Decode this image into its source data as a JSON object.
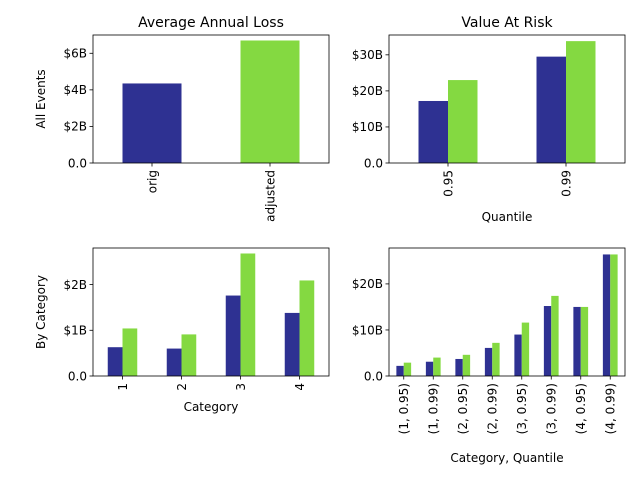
{
  "colors": {
    "orig": "#2e3192",
    "adjusted": "#84d941"
  },
  "chart_data": [
    {
      "type": "bar",
      "title": "Average Annual Loss",
      "ylabel": "All Events",
      "xlabel": "",
      "categories": [
        "orig",
        "adjusted"
      ],
      "values": [
        4.35,
        6.7
      ],
      "bar_colors": [
        "#2e3192",
        "#84d941"
      ],
      "ylim": [
        0,
        7.0
      ],
      "yticks": [
        0,
        2,
        4,
        6
      ],
      "ytick_labels": [
        "0.0",
        "$2B",
        "$4B",
        "$6B"
      ]
    },
    {
      "type": "bar",
      "title": "Value At Risk",
      "ylabel": "",
      "xlabel": "Quantile",
      "categories": [
        "0.95",
        "0.99"
      ],
      "series": [
        {
          "values": [
            17.2,
            29.5
          ],
          "color": "#2e3192"
        },
        {
          "values": [
            23.0,
            33.8
          ],
          "color": "#84d941"
        }
      ],
      "ylim": [
        0,
        35.5
      ],
      "yticks": [
        0,
        10,
        20,
        30
      ],
      "ytick_labels": [
        "0.0",
        "$10B",
        "$20B",
        "$30B"
      ]
    },
    {
      "type": "bar",
      "title": "",
      "ylabel": "By Category",
      "xlabel": "Category",
      "categories": [
        "1",
        "2",
        "3",
        "4"
      ],
      "series": [
        {
          "values": [
            0.63,
            0.6,
            1.76,
            1.38
          ],
          "color": "#2e3192"
        },
        {
          "values": [
            1.04,
            0.91,
            2.68,
            2.09
          ],
          "color": "#84d941"
        }
      ],
      "ylim": [
        0,
        2.8
      ],
      "yticks": [
        0,
        1,
        2
      ],
      "ytick_labels": [
        "0.0",
        "$1B",
        "$2B"
      ]
    },
    {
      "type": "bar",
      "title": "",
      "ylabel": "",
      "xlabel": "Category, Quantile",
      "categories": [
        "(1, 0.95)",
        "(1, 0.99)",
        "(2, 0.95)",
        "(2, 0.99)",
        "(3, 0.95)",
        "(3, 0.99)",
        "(4, 0.95)",
        "(4, 0.99)"
      ],
      "series": [
        {
          "values": [
            2.2,
            3.1,
            3.7,
            6.1,
            9.0,
            15.2,
            15.0,
            26.4
          ],
          "color": "#2e3192"
        },
        {
          "values": [
            2.9,
            4.0,
            4.6,
            7.2,
            11.6,
            17.4,
            15.0,
            26.4
          ],
          "color": "#84d941"
        }
      ],
      "ylim": [
        0,
        27.8
      ],
      "yticks": [
        0,
        10,
        20
      ],
      "ytick_labels": [
        "0.0",
        "$10B",
        "$20B"
      ]
    }
  ]
}
